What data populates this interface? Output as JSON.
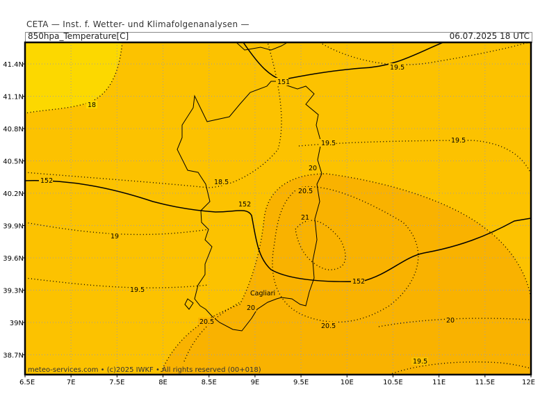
{
  "header": {
    "title": "CETA — Inst. f. Wetter- und Klimafolgenanalysen —",
    "parameter": "850hpa_Temperature[C]",
    "valid_time": "06.07.2025  18 UTC"
  },
  "footer": {
    "credit": "meteo-services.com • (c)2025 IWKF • All rights reserved (00+018)"
  },
  "place_labels": {
    "cagliari": "Cagliari"
  },
  "axes": {
    "lon_labels": [
      "6.5E",
      "7E",
      "7.5E",
      "8E",
      "8.5E",
      "9E",
      "9.5E",
      "10E",
      "10.5E",
      "11E",
      "11.5E",
      "12E"
    ],
    "lat_labels": [
      "41.4N",
      "41.1N",
      "40.8N",
      "40.5N",
      "40.2N",
      "39.9N",
      "39.6N",
      "39.3N",
      "39N",
      "38.7N"
    ]
  },
  "contour_labels": {
    "t18": "18",
    "t185": "18.5",
    "t19a": "19",
    "t195a": "19.5",
    "t195b": "19.5",
    "t195c": "19.5",
    "t195d": "19.5",
    "t195e": "19.5",
    "t20a": "20",
    "t20b": "20",
    "t20c": "20",
    "t205a": "20.5",
    "t205b": "20.5",
    "t205c": "20.5",
    "t21": "21",
    "g152a": "152",
    "g152b": "152",
    "g152c": "152",
    "g151": "151"
  },
  "colors": {
    "band_18": "#fcd800",
    "band_185": "#fcc200",
    "band_205": "#f9b200",
    "grid": "#a0a0a0",
    "frame": "#000000"
  }
}
